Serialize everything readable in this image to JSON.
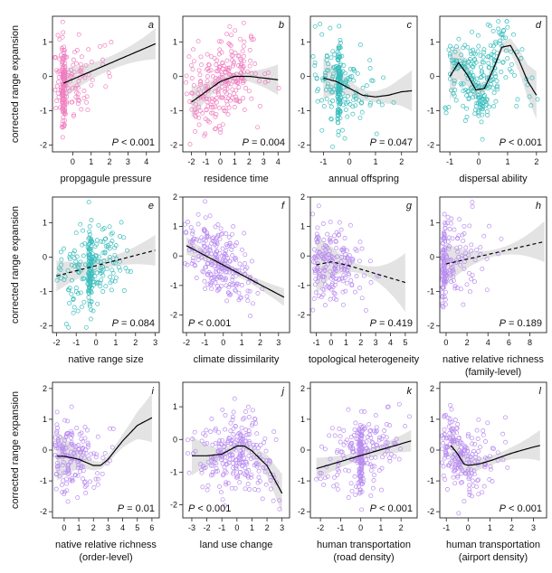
{
  "figure": {
    "ylabel": "corrected range expansion",
    "colors": {
      "pink": "#f07ec0",
      "teal": "#3bbdbd",
      "purple": "#b98cf0",
      "band": "#d9d9d9"
    }
  },
  "chart_data": [
    {
      "letter": "a",
      "xlabel": [
        "propgagule pressure"
      ],
      "p_text": "P < 0.001",
      "p_pos": "bottom-right",
      "xlim": [
        -1.1,
        4.7
      ],
      "xticks": [
        0,
        1,
        2,
        3,
        4
      ],
      "ylim": [
        -2.2,
        1.75
      ],
      "yticks": [
        -2,
        -1,
        0,
        1
      ],
      "fit": {
        "type": "line",
        "dashed": false,
        "x": [
          -0.5,
          4.5
        ],
        "y": [
          -0.2,
          0.95
        ]
      },
      "band_halfwidth": [
        0.2,
        0.45
      ],
      "points": {
        "color": "pink",
        "cluster": [
          -0.5,
          0.45
        ]
      }
    },
    {
      "letter": "b",
      "xlabel": [
        "residence time"
      ],
      "p_text": "P = 0.004",
      "p_pos": "bottom-right",
      "xlim": [
        -2.6,
        4.8
      ],
      "xticks": [
        -2,
        -1,
        0,
        1,
        2,
        3,
        4
      ],
      "ylim": [
        -2.2,
        1.75
      ],
      "yticks": [
        -2,
        -1,
        0,
        1
      ],
      "fit": {
        "type": "curve",
        "dashed": false,
        "x": [
          -2,
          -1,
          0,
          1,
          2,
          3,
          4
        ],
        "y": [
          -0.75,
          -0.45,
          -0.15,
          0.0,
          0.0,
          -0.05,
          -0.1
        ]
      },
      "band_halfwidth": [
        0.12,
        0.45
      ],
      "points": {
        "color": "pink",
        "cluster": [
          0.1,
          0.0
        ]
      }
    },
    {
      "letter": "c",
      "xlabel": [
        "annual offspring"
      ],
      "p_text": "P = 0.047",
      "p_pos": "bottom-right",
      "xlim": [
        -1.5,
        2.6
      ],
      "xticks": [
        -1,
        0,
        1,
        2
      ],
      "ylim": [
        -2.2,
        1.75
      ],
      "yticks": [
        -2,
        -1,
        0,
        1
      ],
      "fit": {
        "type": "curve",
        "dashed": false,
        "x": [
          -1.0,
          -0.5,
          0.0,
          0.5,
          1.0,
          1.5,
          2.0,
          2.4
        ],
        "y": [
          -0.05,
          -0.15,
          -0.35,
          -0.55,
          -0.6,
          -0.55,
          -0.45,
          -0.42
        ]
      },
      "band_halfwidth": [
        0.15,
        0.6
      ],
      "points": {
        "color": "teal",
        "cluster": [
          -0.4,
          0.4
        ]
      }
    },
    {
      "letter": "d",
      "xlabel": [
        "dispersal ability"
      ],
      "p_text": "P < 0.001",
      "p_pos": "bottom-right",
      "xlim": [
        -1.35,
        2.35
      ],
      "xticks": [
        -1.0,
        0.0,
        1.0,
        2.0
      ],
      "ylim": [
        -2.2,
        1.75
      ],
      "yticks": [
        -2,
        -1,
        0,
        1
      ],
      "fit": {
        "type": "curve",
        "dashed": false,
        "x": [
          -1.0,
          -0.7,
          -0.4,
          -0.1,
          0.2,
          0.5,
          0.8,
          1.1,
          1.4,
          1.7,
          2.0
        ],
        "y": [
          0.0,
          0.4,
          0.05,
          -0.4,
          -0.35,
          0.2,
          0.85,
          0.9,
          0.45,
          -0.15,
          -0.55
        ]
      },
      "band_halfwidth": [
        0.12,
        0.7
      ],
      "points": {
        "color": "teal",
        "cluster": [
          0.1,
          0.0
        ]
      }
    },
    {
      "letter": "e",
      "xlabel": [
        "native range size"
      ],
      "p_text": "P = 0.084",
      "p_pos": "bottom-right",
      "xlim": [
        -2.2,
        3.2
      ],
      "xticks": [
        -2,
        -1,
        0,
        1,
        2,
        3
      ],
      "ylim": [
        -2.2,
        1.75
      ],
      "yticks": [
        -2,
        -1,
        0,
        1
      ],
      "fit": {
        "type": "line",
        "dashed": true,
        "x": [
          -2,
          3
        ],
        "y": [
          -0.55,
          0.2
        ]
      },
      "band_halfwidth": [
        0.15,
        0.45
      ],
      "points": {
        "color": "teal",
        "cluster": [
          -0.3,
          0.3
        ]
      }
    },
    {
      "letter": "f",
      "xlabel": [
        "climate dissimilarity"
      ],
      "p_text": "P < 0.001",
      "p_pos": "bottom-left",
      "xlim": [
        -2.2,
        3.6
      ],
      "xticks": [
        -2,
        -1,
        0,
        1,
        2,
        3
      ],
      "ylim": [
        -2.6,
        2.0
      ],
      "yticks": [
        -2,
        -1,
        0,
        1,
        2
      ],
      "fit": {
        "type": "line",
        "dashed": false,
        "x": [
          -2,
          3.3
        ],
        "y": [
          0.35,
          -1.4
        ]
      },
      "band_halfwidth": [
        0.12,
        0.3
      ],
      "points": {
        "color": "purple",
        "cluster": [
          -0.4,
          0.0
        ]
      }
    },
    {
      "letter": "g",
      "xlabel": [
        "topological heterogeneity"
      ],
      "p_text": "P = 0.419",
      "p_pos": "bottom-right",
      "xlim": [
        -1.4,
        5.8
      ],
      "xticks": [
        -1,
        0,
        1,
        2,
        3,
        4,
        5
      ],
      "ylim": [
        -2.6,
        2.0
      ],
      "yticks": [
        -2,
        -1,
        0,
        1,
        2
      ],
      "fit": {
        "type": "curve",
        "dashed": true,
        "x": [
          -1,
          0,
          1,
          2,
          3,
          4,
          5
        ],
        "y": [
          -0.3,
          -0.2,
          -0.3,
          -0.45,
          -0.6,
          -0.75,
          -0.9
        ]
      },
      "band_halfwidth": [
        0.15,
        1.0
      ],
      "points": {
        "color": "purple",
        "cluster": [
          -0.3,
          0.0
        ]
      }
    },
    {
      "letter": "h",
      "xlabel": [
        "native relative richness",
        "(family-level)"
      ],
      "p_text": "P = 0.189",
      "p_pos": "bottom-right",
      "xlim": [
        -0.6,
        9.6
      ],
      "xticks": [
        0,
        2,
        4,
        6,
        8
      ],
      "ylim": [
        -2.2,
        1.75
      ],
      "yticks": [
        -2,
        -1,
        0,
        1
      ],
      "fit": {
        "type": "line",
        "dashed": true,
        "x": [
          0,
          9.4
        ],
        "y": [
          -0.2,
          0.45
        ]
      },
      "band_halfwidth": [
        0.1,
        0.6
      ],
      "points": {
        "color": "purple",
        "cluster": [
          -0.2,
          0.25
        ]
      }
    },
    {
      "letter": "i",
      "xlabel": [
        "native relative richness",
        "(order-level)"
      ],
      "p_text": "P = 0.01",
      "p_pos": "bottom-right",
      "xlim": [
        -0.8,
        6.5
      ],
      "xticks": [
        0,
        1,
        2,
        3,
        4,
        5,
        6
      ],
      "ylim": [
        -2.2,
        2.2
      ],
      "yticks": [
        -2,
        -1,
        0,
        1,
        2
      ],
      "fit": {
        "type": "curve",
        "dashed": false,
        "x": [
          -0.5,
          0,
          1,
          2,
          2.5,
          3,
          4,
          5,
          6
        ],
        "y": [
          -0.2,
          -0.2,
          -0.3,
          -0.5,
          -0.5,
          -0.3,
          0.3,
          0.8,
          1.05
        ]
      },
      "band_halfwidth": [
        0.12,
        0.8
      ],
      "points": {
        "color": "purple",
        "cluster": [
          -0.3,
          0.0
        ]
      }
    },
    {
      "letter": "j",
      "xlabel": [
        "land use change"
      ],
      "p_text": "P < 0.001",
      "p_pos": "bottom-left",
      "xlim": [
        -3.6,
        3.5
      ],
      "xticks": [
        -3,
        -2,
        -1,
        0,
        1,
        2,
        3
      ],
      "ylim": [
        -2.4,
        1.75
      ],
      "yticks": [
        -2,
        -1,
        0,
        1
      ],
      "fit": {
        "type": "curve",
        "dashed": false,
        "x": [
          -3,
          -2,
          -1,
          0,
          0.5,
          1,
          2,
          3
        ],
        "y": [
          -0.5,
          -0.5,
          -0.45,
          -0.2,
          -0.2,
          -0.35,
          -0.8,
          -1.65
        ]
      },
      "band_halfwidth": [
        0.12,
        0.6
      ],
      "points": {
        "color": "purple",
        "cluster": [
          0.0,
          0.0
        ]
      }
    },
    {
      "letter": "k",
      "xlabel": [
        "human transportation",
        "(road density)"
      ],
      "p_text": "P < 0.001",
      "p_pos": "bottom-right",
      "xlim": [
        -2.5,
        2.8
      ],
      "xticks": [
        -2,
        -1,
        0,
        1,
        2
      ],
      "ylim": [
        -2.2,
        2.2
      ],
      "yticks": [
        -2,
        -1,
        0,
        1,
        2
      ],
      "fit": {
        "type": "line",
        "dashed": false,
        "x": [
          -2.2,
          2.5
        ],
        "y": [
          -0.6,
          0.3
        ]
      },
      "band_halfwidth": [
        0.15,
        0.35
      ],
      "points": {
        "color": "purple",
        "cluster": [
          0.0,
          0.3
        ]
      }
    },
    {
      "letter": "l",
      "xlabel": [
        "human transportation",
        "(airport density)"
      ],
      "p_text": "P < 0.001",
      "p_pos": "bottom-right",
      "xlim": [
        -1.3,
        3.6
      ],
      "xticks": [
        -1,
        0,
        1,
        2,
        3
      ],
      "ylim": [
        -2.2,
        2.2
      ],
      "yticks": [
        -2,
        -1,
        0,
        1,
        2
      ],
      "fit": {
        "type": "curve",
        "dashed": false,
        "x": [
          -0.8,
          -0.5,
          -0.2,
          0.0,
          0.5,
          1.0,
          2.0,
          3.0,
          3.3
        ],
        "y": [
          0.15,
          -0.1,
          -0.45,
          -0.5,
          -0.45,
          -0.35,
          -0.1,
          0.1,
          0.15
        ]
      },
      "band_halfwidth": [
        0.15,
        0.5
      ],
      "points": {
        "color": "purple",
        "cluster": [
          -0.5,
          0.0
        ]
      }
    }
  ]
}
